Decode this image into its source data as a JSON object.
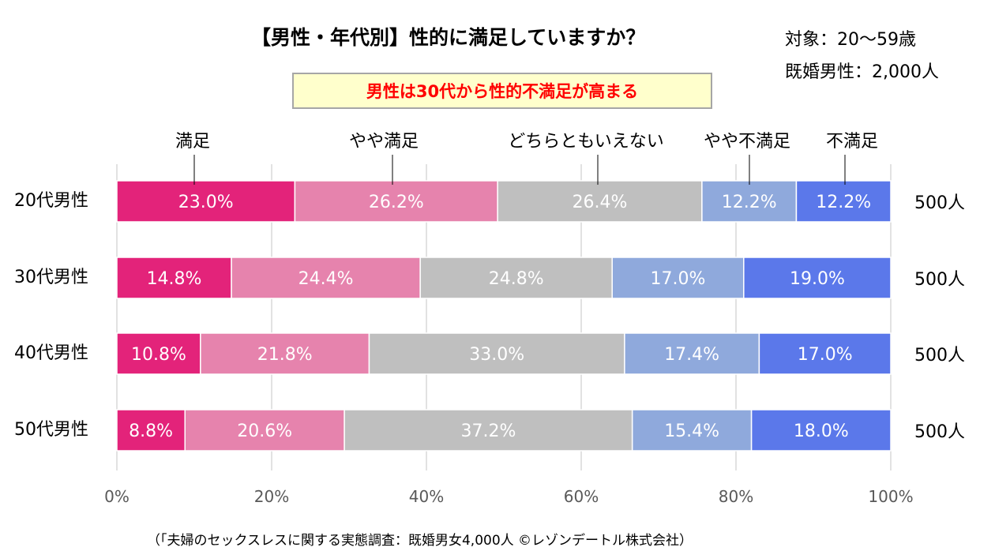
{
  "chart_data": {
    "type": "bar",
    "orientation": "horizontal",
    "stacked": true,
    "percent": true,
    "title": "【男性・年代別】性的に満足していますか？",
    "subtitle_lines": [
      "対象：20～59歳",
      "既婚男性：2,000人"
    ],
    "callout": "男性は30代から性的不満足が高まる",
    "categories": [
      "20代男性",
      "30代男性",
      "40代男性",
      "50代男性"
    ],
    "sample_sizes": [
      "500人",
      "500人",
      "500人",
      "500人"
    ],
    "series": [
      {
        "name": "満足",
        "color": "#e3237a",
        "values": [
          23.0,
          14.8,
          10.8,
          8.8
        ],
        "labels": [
          "23.0%",
          "14.8%",
          "10.8%",
          "8.8%"
        ]
      },
      {
        "name": "やや満足",
        "color": "#e683ad",
        "values": [
          26.2,
          24.4,
          21.8,
          20.6
        ],
        "labels": [
          "26.2%",
          "24.4%",
          "21.8%",
          "20.6%"
        ]
      },
      {
        "name": "どちらともいえない",
        "color": "#bfbfbf",
        "values": [
          26.4,
          24.8,
          33.0,
          37.2
        ],
        "labels": [
          "26.4%",
          "24.8%",
          "33.0%",
          "37.2%"
        ]
      },
      {
        "name": "やや不満足",
        "color": "#8fa9dc",
        "values": [
          12.2,
          17.0,
          17.4,
          15.4
        ],
        "labels": [
          "12.2%",
          "17.0%",
          "17.4%",
          "15.4%"
        ]
      },
      {
        "name": "不満足",
        "color": "#5b78ea",
        "values": [
          12.2,
          19.0,
          17.0,
          18.0
        ],
        "labels": [
          "12.2%",
          "19.0%",
          "17.0%",
          "18.0%"
        ]
      }
    ],
    "xlim": [
      0,
      100
    ],
    "xticks": [
      "0%",
      "20%",
      "40%",
      "60%",
      "80%",
      "100%"
    ],
    "grid": true,
    "legend_position": "top",
    "source": "（「夫婦のセックスレスに関する実態調査：既婚男女4,000人 ©レゾンデートル株式会社）"
  }
}
